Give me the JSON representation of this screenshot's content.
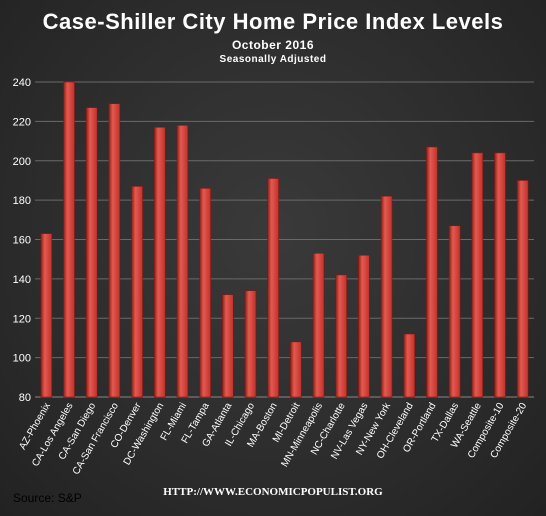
{
  "title": "Case-Shiller  City Home Price Index Levels",
  "subtitle": "October  2016",
  "subtitle2": "Seasonally  Adjusted",
  "source": "Source: S&P",
  "footer_url": "HTTP://WWW.ECONOMICPOPULIST.ORG",
  "colors": {
    "bar": "#c0312b",
    "bar_highlight": "#e45a4f",
    "bar_shadow": "#8e1f19",
    "grid": "#6a6a6a",
    "text": "#ffffff"
  },
  "chart_data": {
    "type": "bar",
    "categories": [
      "AZ-Phoenix",
      "CA-Los Angeles",
      "CA-San Diego",
      "CA-San Francisco",
      "CO-Denver",
      "DC-Washington",
      "FL-Miami",
      "FL-Tampa",
      "GA-Atlanta",
      "IL-Chicago",
      "MA-Boston",
      "MI-Detroit",
      "MN-Minneapolis",
      "NC-Charlotte",
      "NV-Las Vegas",
      "NY-New York",
      "OH-Cleveland",
      "OR-Portland",
      "TX-Dallas",
      "WA-Seattle",
      "Composite-10",
      "Composite-20"
    ],
    "values": [
      163,
      240,
      227,
      229,
      187,
      217,
      218,
      186,
      132,
      134,
      191,
      108,
      153,
      142,
      152,
      182,
      112,
      207,
      167,
      204,
      204,
      190
    ],
    "ylim": [
      80,
      240
    ],
    "yticks": [
      80,
      100,
      120,
      140,
      160,
      180,
      200,
      220,
      240
    ],
    "grid": true,
    "legend": "none"
  }
}
